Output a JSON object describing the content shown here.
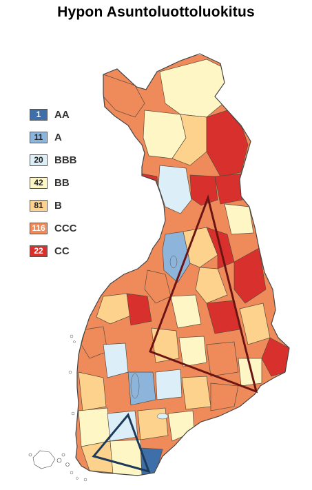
{
  "title": "Hypon Asuntoluottoluokitus",
  "legend": [
    {
      "count": "1",
      "rating": "AA",
      "color": "#3f6fa9",
      "text_color": "#ffffff"
    },
    {
      "count": "11",
      "rating": "A",
      "color": "#8db5dc",
      "text_color": "#222222"
    },
    {
      "count": "20",
      "rating": "BBB",
      "color": "#dceef7",
      "text_color": "#222222"
    },
    {
      "count": "42",
      "rating": "BB",
      "color": "#fff6c6",
      "text_color": "#222222"
    },
    {
      "count": "81",
      "rating": "B",
      "color": "#fcd28c",
      "text_color": "#222222"
    },
    {
      "count": "116",
      "rating": "CCC",
      "color": "#ef8a5b",
      "text_color": "#ffffff"
    },
    {
      "count": "22",
      "rating": "CC",
      "color": "#d8312d",
      "text_color": "#ffffff"
    }
  ],
  "overlays": {
    "north_triangle_color": "#6b1414",
    "south_triangle_color": "#1e3a5a"
  }
}
